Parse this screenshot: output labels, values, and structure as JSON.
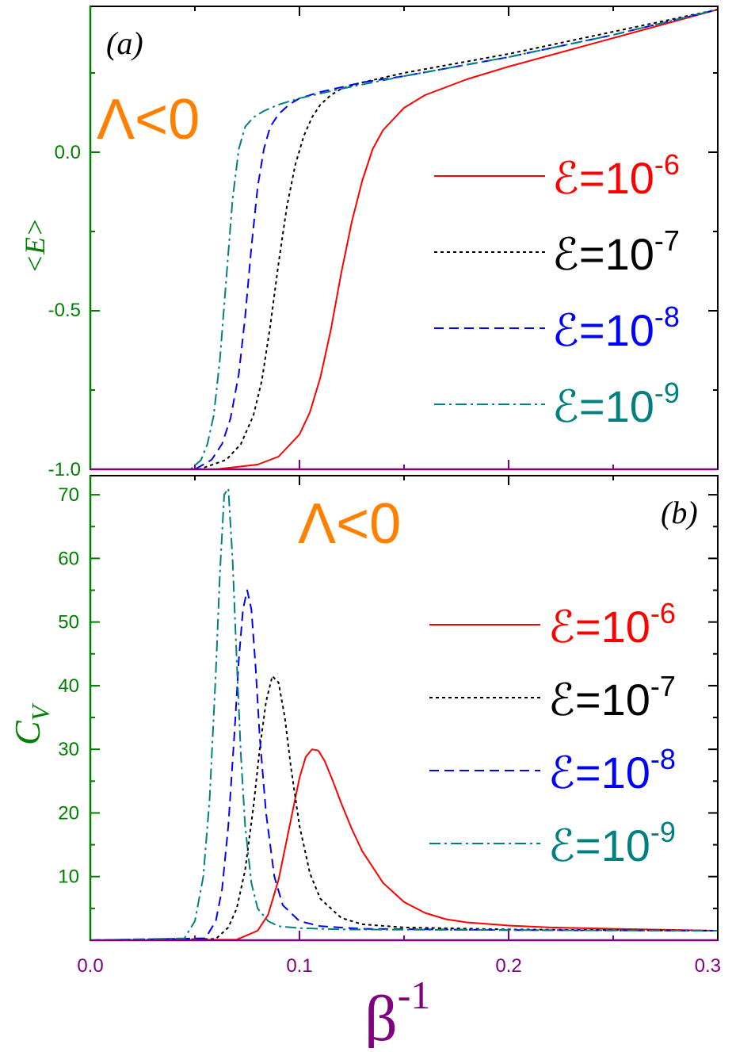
{
  "colors": {
    "frame": "#000000",
    "axis_a": "#008000",
    "axis_b_y": "#008000",
    "axis_x": "#800080",
    "lambda": "#ff8000",
    "s1": "#ff0000",
    "s2": "#000000",
    "s3": "#0000ff",
    "s4": "#008080"
  },
  "chart_data": [
    {
      "panel": "a",
      "panel_label": "(a)",
      "annotation": "Λ<0",
      "type": "line",
      "ylabel": "<E>",
      "xlabel": "",
      "xlim": [
        0.0,
        0.3
      ],
      "ylim": [
        -1.0,
        0.46
      ],
      "yticks": [
        "0.0",
        "-0.5",
        "-1.0"
      ],
      "legend_placement": "right",
      "series": [
        {
          "name": "ℰ=10-6",
          "base": "ℰ=10",
          "exp": "-6",
          "x": [
            0.0,
            0.06,
            0.08,
            0.09,
            0.1,
            0.105,
            0.11,
            0.115,
            0.12,
            0.125,
            0.13,
            0.135,
            0.14,
            0.15,
            0.16,
            0.18,
            0.2,
            0.25,
            0.3
          ],
          "y": [
            -1.0,
            -1.0,
            -0.985,
            -0.96,
            -0.89,
            -0.82,
            -0.71,
            -0.56,
            -0.38,
            -0.22,
            -0.09,
            0.01,
            0.07,
            0.14,
            0.18,
            0.23,
            0.27,
            0.36,
            0.45
          ]
        },
        {
          "name": "ℰ=10-7",
          "base": "ℰ=10",
          "exp": "-7",
          "x": [
            0.0,
            0.052,
            0.065,
            0.072,
            0.078,
            0.082,
            0.086,
            0.09,
            0.094,
            0.098,
            0.102,
            0.106,
            0.11,
            0.115,
            0.12,
            0.13,
            0.15,
            0.2,
            0.25,
            0.3
          ],
          "y": [
            -1.0,
            -1.0,
            -0.97,
            -0.92,
            -0.83,
            -0.72,
            -0.55,
            -0.35,
            -0.17,
            -0.04,
            0.05,
            0.11,
            0.15,
            0.18,
            0.2,
            0.22,
            0.25,
            0.31,
            0.38,
            0.45
          ]
        },
        {
          "name": "ℰ=10-8",
          "base": "ℰ=10",
          "exp": "-8",
          "x": [
            0.0,
            0.05,
            0.058,
            0.063,
            0.067,
            0.071,
            0.074,
            0.077,
            0.08,
            0.083,
            0.086,
            0.09,
            0.095,
            0.1,
            0.11,
            0.13,
            0.15,
            0.2,
            0.25,
            0.3
          ],
          "y": [
            -1.0,
            -1.0,
            -0.97,
            -0.92,
            -0.84,
            -0.7,
            -0.52,
            -0.3,
            -0.11,
            0.01,
            0.08,
            0.12,
            0.15,
            0.17,
            0.19,
            0.22,
            0.24,
            0.3,
            0.37,
            0.45
          ]
        },
        {
          "name": "ℰ=10-9",
          "base": "ℰ=10",
          "exp": "-9",
          "x": [
            0.0,
            0.048,
            0.053,
            0.056,
            0.059,
            0.062,
            0.065,
            0.068,
            0.071,
            0.074,
            0.078,
            0.083,
            0.09,
            0.1,
            0.12,
            0.15,
            0.2,
            0.25,
            0.3
          ],
          "y": [
            -1.0,
            -1.0,
            -0.97,
            -0.92,
            -0.83,
            -0.65,
            -0.4,
            -0.15,
            0.01,
            0.08,
            0.11,
            0.13,
            0.15,
            0.17,
            0.2,
            0.24,
            0.3,
            0.37,
            0.45
          ]
        }
      ]
    },
    {
      "panel": "b",
      "panel_label": "(b)",
      "annotation": "Λ<0",
      "type": "line",
      "ylabel": "C",
      "ylabel_sub": "V",
      "xlabel": "β",
      "xlabel_sup": "-1",
      "xlim": [
        0.0,
        0.3
      ],
      "ylim": [
        0,
        73
      ],
      "yticks": [
        "10",
        "20",
        "30",
        "40",
        "50",
        "60",
        "70"
      ],
      "xticks": [
        "0.0",
        "0.1",
        "0.2",
        "0.3"
      ],
      "legend_placement": "right",
      "series": [
        {
          "name": "ℰ=10-6",
          "base": "ℰ=10",
          "exp": "-6",
          "x": [
            0.0,
            0.07,
            0.08,
            0.085,
            0.09,
            0.095,
            0.1,
            0.103,
            0.106,
            0.109,
            0.112,
            0.116,
            0.12,
            0.125,
            0.13,
            0.14,
            0.15,
            0.16,
            0.17,
            0.18,
            0.2,
            0.22,
            0.25,
            0.3
          ],
          "y": [
            0.0,
            0.1,
            1.5,
            4.0,
            9.5,
            17.5,
            25.5,
            28.8,
            30.0,
            29.8,
            28.2,
            25.0,
            21.5,
            17.5,
            14.0,
            9.0,
            6.0,
            4.3,
            3.3,
            2.8,
            2.3,
            2.0,
            1.8,
            1.5
          ]
        },
        {
          "name": "ℰ=10-7",
          "base": "ℰ=10",
          "exp": "-7",
          "x": [
            0.0,
            0.06,
            0.066,
            0.07,
            0.074,
            0.078,
            0.081,
            0.084,
            0.087,
            0.09,
            0.093,
            0.096,
            0.1,
            0.105,
            0.11,
            0.12,
            0.13,
            0.15,
            0.2,
            0.3
          ],
          "y": [
            0.0,
            0.2,
            2.0,
            5.0,
            11.0,
            21.0,
            30.0,
            37.5,
            41.5,
            40.5,
            35.0,
            27.0,
            18.0,
            10.5,
            6.5,
            3.5,
            2.5,
            2.0,
            1.7,
            1.5
          ]
        },
        {
          "name": "ℰ=10-8",
          "base": "ℰ=10",
          "exp": "-8",
          "x": [
            0.0,
            0.055,
            0.06,
            0.063,
            0.066,
            0.069,
            0.071,
            0.073,
            0.075,
            0.077,
            0.079,
            0.081,
            0.084,
            0.088,
            0.092,
            0.1,
            0.11,
            0.13,
            0.2,
            0.3
          ],
          "y": [
            0.0,
            0.3,
            3.0,
            8.0,
            18.0,
            33.0,
            44.0,
            52.0,
            55.0,
            52.0,
            43.0,
            32.0,
            20.0,
            10.0,
            5.5,
            3.0,
            2.2,
            1.8,
            1.6,
            1.5
          ]
        },
        {
          "name": "ℰ=10-9",
          "base": "ℰ=10",
          "exp": "-9",
          "x": [
            0.0,
            0.045,
            0.05,
            0.054,
            0.057,
            0.06,
            0.062,
            0.064,
            0.066,
            0.068,
            0.07,
            0.072,
            0.074,
            0.077,
            0.08,
            0.085,
            0.09,
            0.1,
            0.12,
            0.2,
            0.3
          ],
          "y": [
            0.0,
            0.3,
            3.0,
            10.0,
            22.0,
            42.0,
            58.0,
            70.0,
            71.0,
            60.0,
            44.0,
            29.0,
            18.0,
            9.0,
            5.0,
            3.0,
            2.2,
            1.9,
            1.7,
            1.6,
            1.5
          ]
        }
      ]
    }
  ]
}
